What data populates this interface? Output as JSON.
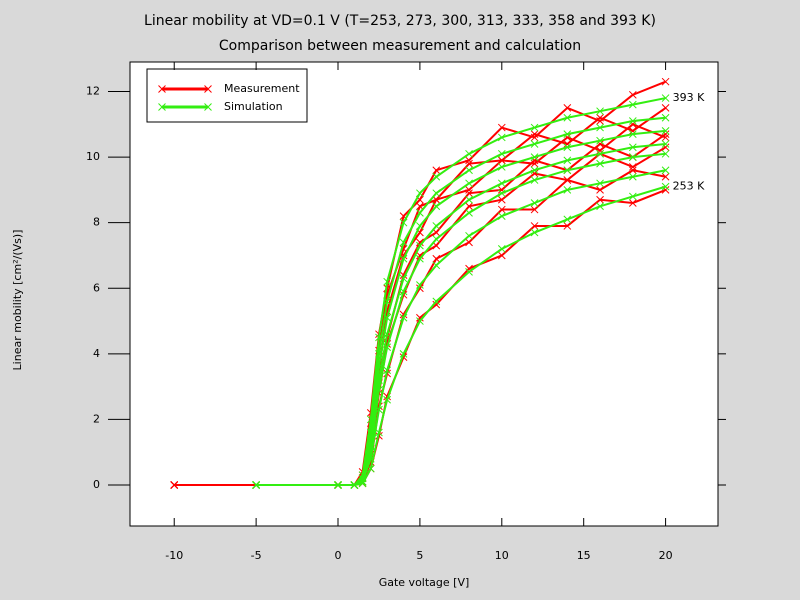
{
  "chart_data": {
    "type": "line",
    "title": "Linear mobility at VD=0.1 V (T=253, 273, 300, 313, 333, 358 and 393 K)",
    "subtitle": "Comparison between measurement and calculation",
    "x_label": "Gate voltage [V]",
    "y_label": "Linear mobility [cm²/(Vs)]",
    "x": [
      -10,
      -5,
      0,
      1,
      1.5,
      2,
      2.5,
      3,
      4,
      5,
      6,
      8,
      10,
      12,
      14,
      16,
      18,
      20
    ],
    "xlim": [
      -12.7,
      23.2
    ],
    "ylim": [
      -1.25,
      12.9
    ],
    "xticks": [
      -10,
      -5,
      0,
      5,
      10,
      15,
      20
    ],
    "yticks": [
      0,
      2,
      4,
      6,
      8,
      10,
      12
    ],
    "legend": "upper left",
    "series": [
      {
        "name": "Measurement",
        "color": "#ff0000",
        "values": [
          0,
          0,
          0,
          0,
          0.4,
          2.2,
          4.6,
          6.0,
          8.2,
          8.7,
          9.6,
          9.9,
          10.9,
          10.6,
          11.5,
          11.1,
          11.9,
          12.3
        ]
      },
      {
        "name": "Measurement",
        "color": "#ff0000",
        "values": [
          0,
          0,
          0,
          0,
          0.3,
          1.7,
          4.1,
          5.8,
          7.2,
          8.5,
          8.7,
          9.8,
          9.9,
          10.7,
          10.4,
          11.2,
          10.8,
          11.5
        ]
      },
      {
        "name": "Measurement",
        "color": "#ff0000",
        "values": [
          0,
          0,
          0,
          0,
          0.2,
          1.5,
          3.5,
          5.3,
          7.0,
          7.7,
          8.7,
          9.0,
          9.9,
          9.8,
          10.6,
          10.2,
          11.0,
          10.6
        ]
      },
      {
        "name": "Measurement",
        "color": "#ff0000",
        "values": [
          0,
          0,
          0,
          0,
          0.1,
          1.1,
          3.3,
          4.5,
          6.4,
          7.4,
          7.7,
          8.9,
          9.0,
          9.9,
          9.6,
          10.4,
          10.0,
          10.7
        ]
      },
      {
        "name": "Measurement",
        "color": "#ff0000",
        "values": [
          0,
          0,
          0,
          0,
          0.1,
          1.1,
          2.8,
          4.3,
          5.8,
          7.0,
          7.3,
          8.5,
          8.7,
          9.5,
          9.3,
          10.1,
          9.7,
          10.3
        ]
      },
      {
        "name": "Measurement",
        "color": "#ff0000",
        "values": [
          0,
          0,
          0,
          0,
          0.1,
          0.7,
          2.4,
          3.4,
          5.2,
          6.0,
          6.9,
          7.4,
          8.4,
          8.4,
          9.3,
          9.0,
          9.6,
          9.4
        ]
      },
      {
        "name": "Measurement",
        "color": "#ff0000",
        "values": [
          0,
          0,
          0,
          0,
          0.05,
          0.5,
          1.5,
          2.7,
          3.9,
          5.1,
          5.5,
          6.6,
          7.0,
          7.9,
          7.9,
          8.7,
          8.6,
          9.0
        ]
      },
      {
        "name": "Simulation",
        "color": "#33ee11",
        "values": [
          null,
          0,
          0,
          0,
          0.3,
          2.0,
          4.5,
          6.2,
          8.0,
          8.9,
          9.4,
          10.1,
          10.6,
          10.9,
          11.2,
          11.4,
          11.6,
          11.8
        ]
      },
      {
        "name": "Simulation",
        "color": "#33ee11",
        "values": [
          null,
          0,
          0,
          0,
          0.2,
          1.6,
          4.0,
          5.6,
          7.4,
          8.3,
          8.9,
          9.6,
          10.1,
          10.4,
          10.7,
          10.9,
          11.1,
          11.2
        ]
      },
      {
        "name": "Simulation",
        "color": "#33ee11",
        "values": [
          null,
          0,
          0,
          0,
          0.2,
          1.4,
          3.6,
          5.1,
          6.9,
          7.9,
          8.5,
          9.2,
          9.7,
          10.0,
          10.3,
          10.5,
          10.7,
          10.8
        ]
      },
      {
        "name": "Simulation",
        "color": "#33ee11",
        "values": [
          null,
          0,
          0,
          0,
          0.1,
          1.2,
          3.2,
          4.6,
          6.3,
          7.3,
          7.9,
          8.7,
          9.2,
          9.6,
          9.9,
          10.1,
          10.3,
          10.4
        ]
      },
      {
        "name": "Simulation",
        "color": "#33ee11",
        "values": [
          null,
          0,
          0,
          0,
          0.1,
          1.0,
          2.9,
          4.2,
          5.9,
          6.9,
          7.5,
          8.3,
          8.9,
          9.3,
          9.6,
          9.8,
          10.0,
          10.1
        ]
      },
      {
        "name": "Simulation",
        "color": "#33ee11",
        "values": [
          null,
          0,
          0,
          0,
          0.1,
          0.8,
          2.3,
          3.5,
          5.1,
          6.1,
          6.7,
          7.6,
          8.2,
          8.6,
          9.0,
          9.2,
          9.4,
          9.6
        ]
      },
      {
        "name": "Simulation",
        "color": "#33ee11",
        "values": [
          null,
          0,
          0,
          0,
          0.05,
          0.5,
          1.6,
          2.6,
          4.0,
          5.0,
          5.6,
          6.5,
          7.2,
          7.7,
          8.1,
          8.5,
          8.8,
          9.1
        ]
      }
    ],
    "annotations": [
      {
        "text": "393 K",
        "x": 20,
        "y": 11.8
      },
      {
        "text": "253 K",
        "x": 20,
        "y": 9.1
      }
    ]
  }
}
